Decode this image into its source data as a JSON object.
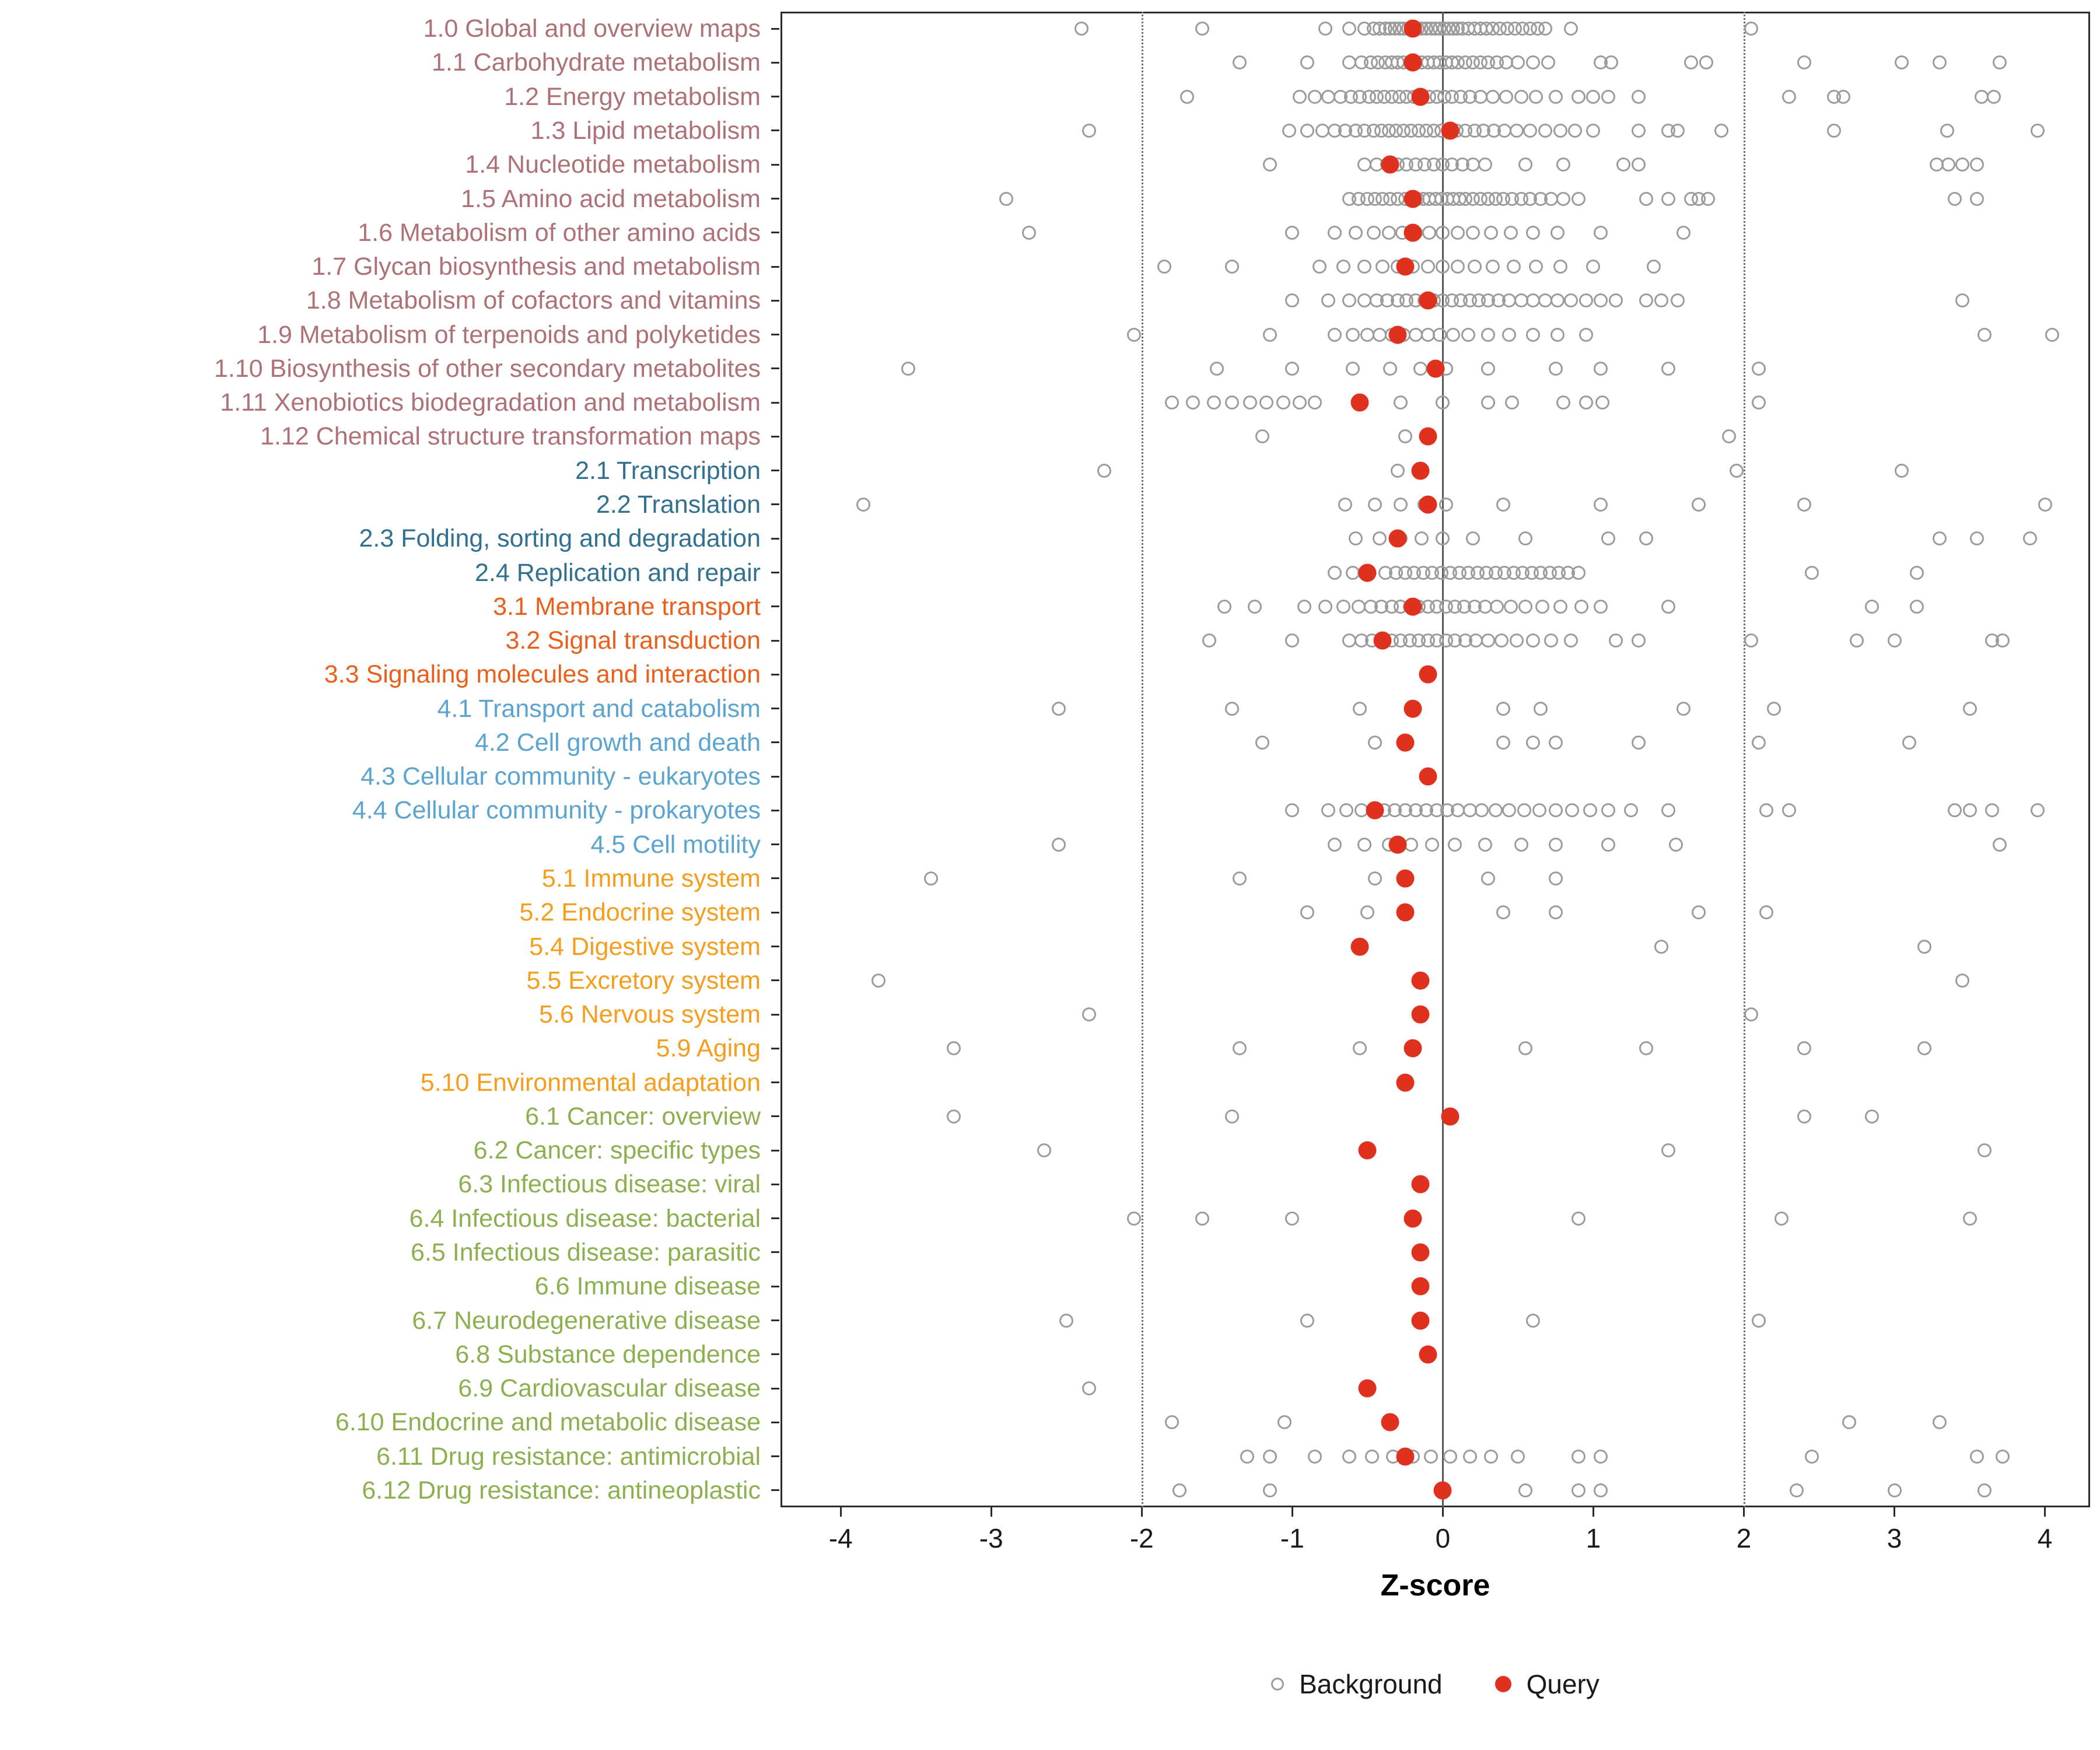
{
  "legend": {
    "background": "Background",
    "query": "Query"
  },
  "colors": {
    "query": "#E0301E",
    "background_stroke": "#9C9C9C",
    "axis": "#2B2B2B",
    "zero_line": "#595959",
    "threshold_line": "#6E6E6E"
  },
  "chart_data": {
    "type": "scatter",
    "title": "",
    "xlabel": "Z-score",
    "ylabel": "",
    "xlim": [
      -4.4,
      4.3
    ],
    "x_ticks": [
      -4,
      -3,
      -2,
      -1,
      0,
      1,
      2,
      3,
      4
    ],
    "reference_lines": {
      "solid_at": [
        0
      ],
      "dotted_at": [
        -2,
        2
      ]
    },
    "legend_position": "bottom",
    "grid": false,
    "series_names": [
      "Background",
      "Query"
    ],
    "groups": {
      "metabolism": "#AE7276",
      "genetic_information_processing": "#31708E",
      "environmental_information_processing": "#E8601C",
      "cellular_processes": "#5BA4CF",
      "organismal_systems": "#F59D1C",
      "human_diseases": "#8CB050"
    },
    "rows": [
      {
        "label": "1.0 Global and overview maps",
        "group": "metabolism",
        "query": -0.2,
        "background": [
          -2.4,
          -1.6,
          -0.78,
          -0.62,
          -0.52,
          -0.46,
          -0.42,
          -0.38,
          -0.35,
          -0.32,
          -0.29,
          -0.26,
          -0.23,
          -0.2,
          -0.17,
          -0.14,
          -0.11,
          -0.08,
          -0.05,
          -0.02,
          0.01,
          0.04,
          0.07,
          0.1,
          0.13,
          0.17,
          0.21,
          0.25,
          0.29,
          0.33,
          0.38,
          0.43,
          0.48,
          0.53,
          0.58,
          0.63,
          0.68,
          0.85,
          2.05
        ]
      },
      {
        "label": "1.1 Carbohydrate metabolism",
        "group": "metabolism",
        "query": -0.2,
        "background": [
          -1.35,
          -0.9,
          -0.62,
          -0.54,
          -0.48,
          -0.43,
          -0.38,
          -0.34,
          -0.3,
          -0.26,
          -0.22,
          -0.18,
          -0.14,
          -0.1,
          -0.06,
          -0.02,
          0.02,
          0.06,
          0.1,
          0.15,
          0.2,
          0.25,
          0.3,
          0.36,
          0.42,
          0.5,
          0.6,
          0.7,
          1.05,
          1.12,
          1.65,
          1.75,
          2.4,
          3.05,
          3.3,
          3.7
        ]
      },
      {
        "label": "1.2 Energy metabolism",
        "group": "metabolism",
        "query": -0.15,
        "background": [
          -1.7,
          -0.95,
          -0.85,
          -0.76,
          -0.68,
          -0.61,
          -0.55,
          -0.49,
          -0.44,
          -0.39,
          -0.34,
          -0.29,
          -0.24,
          -0.19,
          -0.14,
          -0.09,
          -0.04,
          0.01,
          0.06,
          0.12,
          0.18,
          0.25,
          0.33,
          0.42,
          0.52,
          0.62,
          0.75,
          0.9,
          1.0,
          1.1,
          1.3,
          2.3,
          2.6,
          2.66,
          3.58,
          3.66
        ]
      },
      {
        "label": "1.3 Lipid metabolism",
        "group": "metabolism",
        "query": 0.05,
        "background": [
          -2.35,
          -1.02,
          -0.9,
          -0.8,
          -0.72,
          -0.65,
          -0.58,
          -0.52,
          -0.46,
          -0.41,
          -0.36,
          -0.31,
          -0.26,
          -0.21,
          -0.16,
          -0.11,
          -0.06,
          -0.01,
          0.04,
          0.09,
          0.15,
          0.21,
          0.27,
          0.34,
          0.41,
          0.49,
          0.58,
          0.68,
          0.78,
          0.88,
          1.0,
          1.3,
          1.5,
          1.56,
          1.85,
          2.6,
          3.35,
          3.95
        ]
      },
      {
        "label": "1.4 Nucleotide metabolism",
        "group": "metabolism",
        "query": -0.35,
        "background": [
          -1.15,
          -0.52,
          -0.44,
          -0.37,
          -0.3,
          -0.24,
          -0.18,
          -0.12,
          -0.06,
          0.0,
          0.06,
          0.13,
          0.2,
          0.28,
          0.55,
          0.8,
          1.2,
          1.3,
          3.28,
          3.36,
          3.45,
          3.55
        ]
      },
      {
        "label": "1.5 Amino acid metabolism",
        "group": "metabolism",
        "query": -0.2,
        "background": [
          -2.9,
          -0.62,
          -0.56,
          -0.5,
          -0.45,
          -0.4,
          -0.35,
          -0.3,
          -0.25,
          -0.21,
          -0.17,
          -0.13,
          -0.09,
          -0.05,
          -0.01,
          0.03,
          0.07,
          0.11,
          0.15,
          0.2,
          0.25,
          0.3,
          0.35,
          0.4,
          0.46,
          0.52,
          0.58,
          0.65,
          0.72,
          0.8,
          0.9,
          1.35,
          1.5,
          1.65,
          1.7,
          1.76,
          3.4,
          3.55
        ]
      },
      {
        "label": "1.6 Metabolism of other amino acids",
        "group": "metabolism",
        "query": -0.2,
        "background": [
          -2.75,
          -1.0,
          -0.72,
          -0.58,
          -0.46,
          -0.36,
          -0.27,
          -0.18,
          -0.09,
          0.0,
          0.1,
          0.2,
          0.32,
          0.45,
          0.6,
          0.76,
          1.05,
          1.6
        ]
      },
      {
        "label": "1.7 Glycan biosynthesis and metabolism",
        "group": "metabolism",
        "query": -0.25,
        "background": [
          -1.85,
          -1.4,
          -0.82,
          -0.66,
          -0.52,
          -0.4,
          -0.3,
          -0.2,
          -0.1,
          0.0,
          0.1,
          0.21,
          0.33,
          0.47,
          0.62,
          0.78,
          1.0,
          1.4
        ]
      },
      {
        "label": "1.8 Metabolism of cofactors and vitamins",
        "group": "metabolism",
        "query": -0.1,
        "background": [
          -1.0,
          -0.76,
          -0.62,
          -0.52,
          -0.44,
          -0.37,
          -0.3,
          -0.24,
          -0.18,
          -0.12,
          -0.06,
          0.0,
          0.06,
          0.12,
          0.18,
          0.24,
          0.3,
          0.37,
          0.44,
          0.52,
          0.6,
          0.68,
          0.76,
          0.85,
          0.95,
          1.05,
          1.15,
          1.35,
          1.45,
          1.56,
          3.45
        ]
      },
      {
        "label": "1.9 Metabolism of terpenoids and polyketides",
        "group": "metabolism",
        "query": -0.3,
        "background": [
          -2.05,
          -1.15,
          -0.72,
          -0.6,
          -0.5,
          -0.42,
          -0.34,
          -0.26,
          -0.18,
          -0.1,
          -0.02,
          0.07,
          0.17,
          0.3,
          0.44,
          0.6,
          0.76,
          0.95,
          3.6,
          4.05
        ]
      },
      {
        "label": "1.10 Biosynthesis of other secondary metabolites",
        "group": "metabolism",
        "query": -0.05,
        "background": [
          -3.55,
          -1.5,
          -1.0,
          -0.6,
          -0.35,
          -0.15,
          0.02,
          0.3,
          0.75,
          1.05,
          1.5,
          2.1
        ]
      },
      {
        "label": "1.11 Xenobiotics biodegradation and metabolism",
        "group": "metabolism",
        "query": -0.55,
        "background": [
          -1.8,
          -1.66,
          -1.52,
          -1.4,
          -1.28,
          -1.17,
          -1.06,
          -0.95,
          -0.85,
          -0.55,
          -0.28,
          0.0,
          0.3,
          0.46,
          0.8,
          0.95,
          1.06,
          2.1
        ]
      },
      {
        "label": "1.12 Chemical structure transformation maps",
        "group": "metabolism",
        "query": -0.1,
        "background": [
          -1.2,
          -0.25,
          1.9
        ]
      },
      {
        "label": "2.1 Transcription",
        "group": "genetic_information_processing",
        "query": -0.15,
        "background": [
          -2.25,
          -0.3,
          1.95,
          3.05
        ]
      },
      {
        "label": "2.2 Translation",
        "group": "genetic_information_processing",
        "query": -0.1,
        "background": [
          -3.85,
          -0.65,
          -0.45,
          -0.28,
          -0.12,
          0.02,
          0.4,
          1.05,
          1.7,
          2.4,
          4.0
        ]
      },
      {
        "label": "2.3 Folding, sorting and degradation",
        "group": "genetic_information_processing",
        "query": -0.3,
        "background": [
          -0.58,
          -0.42,
          -0.28,
          -0.14,
          0.0,
          0.2,
          0.55,
          1.1,
          1.35,
          3.3,
          3.55,
          3.9
        ]
      },
      {
        "label": "2.4 Replication and repair",
        "group": "genetic_information_processing",
        "query": -0.5,
        "background": [
          -0.72,
          -0.6,
          -0.52,
          -0.38,
          -0.31,
          -0.25,
          -0.19,
          -0.13,
          -0.07,
          -0.01,
          0.05,
          0.11,
          0.17,
          0.23,
          0.29,
          0.35,
          0.41,
          0.47,
          0.53,
          0.59,
          0.65,
          0.71,
          0.77,
          0.83,
          0.9,
          2.45,
          3.15
        ]
      },
      {
        "label": "3.1 Membrane transport",
        "group": "environmental_information_processing",
        "query": -0.2,
        "background": [
          -1.45,
          -1.25,
          -0.92,
          -0.78,
          -0.66,
          -0.56,
          -0.48,
          -0.41,
          -0.34,
          -0.28,
          -0.22,
          -0.16,
          -0.1,
          -0.04,
          0.02,
          0.08,
          0.14,
          0.21,
          0.28,
          0.36,
          0.45,
          0.55,
          0.66,
          0.78,
          0.92,
          1.05,
          1.5,
          2.85,
          3.15
        ]
      },
      {
        "label": "3.2 Signal transduction",
        "group": "environmental_information_processing",
        "query": -0.4,
        "background": [
          -1.55,
          -1.0,
          -0.62,
          -0.54,
          -0.47,
          -0.4,
          -0.34,
          -0.28,
          -0.22,
          -0.16,
          -0.1,
          -0.04,
          0.02,
          0.08,
          0.15,
          0.22,
          0.3,
          0.39,
          0.49,
          0.6,
          0.72,
          0.85,
          1.15,
          1.3,
          2.05,
          2.75,
          3.0,
          3.65,
          3.72
        ]
      },
      {
        "label": "3.3 Signaling molecules and interaction",
        "group": "environmental_information_processing",
        "query": -0.1,
        "background": []
      },
      {
        "label": "4.1 Transport and catabolism",
        "group": "cellular_processes",
        "query": -0.2,
        "background": [
          -2.55,
          -1.4,
          -0.55,
          0.4,
          0.65,
          1.6,
          2.2,
          3.5
        ]
      },
      {
        "label": "4.2 Cell growth and death",
        "group": "cellular_processes",
        "query": -0.25,
        "background": [
          -1.2,
          -0.45,
          0.4,
          0.6,
          0.75,
          1.3,
          2.1,
          3.1
        ]
      },
      {
        "label": "4.3 Cellular community - eukaryotes",
        "group": "cellular_processes",
        "query": -0.1,
        "background": []
      },
      {
        "label": "4.4 Cellular community - prokaryotes",
        "group": "cellular_processes",
        "query": -0.45,
        "background": [
          -1.0,
          -0.76,
          -0.64,
          -0.54,
          -0.46,
          -0.39,
          -0.32,
          -0.25,
          -0.18,
          -0.11,
          -0.04,
          0.03,
          0.1,
          0.18,
          0.26,
          0.35,
          0.44,
          0.54,
          0.64,
          0.75,
          0.86,
          0.98,
          1.1,
          1.25,
          1.5,
          2.15,
          2.3,
          3.4,
          3.5,
          3.65,
          3.95
        ]
      },
      {
        "label": "4.5 Cell motility",
        "group": "cellular_processes",
        "query": -0.3,
        "background": [
          -2.55,
          -0.72,
          -0.52,
          -0.36,
          -0.21,
          -0.07,
          0.08,
          0.28,
          0.52,
          0.75,
          1.1,
          1.55,
          3.7
        ]
      },
      {
        "label": "5.1 Immune system",
        "group": "organismal_systems",
        "query": -0.25,
        "background": [
          -3.4,
          -1.35,
          -0.45,
          0.3,
          0.75
        ]
      },
      {
        "label": "5.2 Endocrine system",
        "group": "organismal_systems",
        "query": -0.25,
        "background": [
          -0.9,
          -0.5,
          0.4,
          0.75,
          1.7,
          2.15
        ]
      },
      {
        "label": "5.4 Digestive system",
        "group": "organismal_systems",
        "query": -0.55,
        "background": [
          1.45,
          3.2
        ]
      },
      {
        "label": "5.5 Excretory system",
        "group": "organismal_systems",
        "query": -0.15,
        "background": [
          -3.75,
          3.45
        ]
      },
      {
        "label": "5.6 Nervous system",
        "group": "organismal_systems",
        "query": -0.15,
        "background": [
          -2.35,
          2.05
        ]
      },
      {
        "label": "5.9 Aging",
        "group": "organismal_systems",
        "query": -0.2,
        "background": [
          -3.25,
          -1.35,
          -0.55,
          0.55,
          1.35,
          2.4,
          3.2
        ]
      },
      {
        "label": "5.10 Environmental adaptation",
        "group": "organismal_systems",
        "query": -0.25,
        "background": []
      },
      {
        "label": "6.1 Cancer: overview",
        "group": "human_diseases",
        "query": 0.05,
        "background": [
          -3.25,
          -1.4,
          2.4,
          2.85
        ]
      },
      {
        "label": "6.2 Cancer: specific types",
        "group": "human_diseases",
        "query": -0.5,
        "background": [
          -2.65,
          1.5,
          3.6
        ]
      },
      {
        "label": "6.3 Infectious disease: viral",
        "group": "human_diseases",
        "query": -0.15,
        "background": []
      },
      {
        "label": "6.4 Infectious disease: bacterial",
        "group": "human_diseases",
        "query": -0.2,
        "background": [
          -2.05,
          -1.6,
          -1.0,
          0.9,
          2.25,
          3.5
        ]
      },
      {
        "label": "6.5 Infectious disease: parasitic",
        "group": "human_diseases",
        "query": -0.15,
        "background": []
      },
      {
        "label": "6.6 Immune disease",
        "group": "human_diseases",
        "query": -0.15,
        "background": []
      },
      {
        "label": "6.7 Neurodegenerative disease",
        "group": "human_diseases",
        "query": -0.15,
        "background": [
          -2.5,
          -0.9,
          0.6,
          2.1
        ]
      },
      {
        "label": "6.8 Substance dependence",
        "group": "human_diseases",
        "query": -0.1,
        "background": []
      },
      {
        "label": "6.9 Cardiovascular disease",
        "group": "human_diseases",
        "query": -0.5,
        "background": [
          -2.35
        ]
      },
      {
        "label": "6.10 Endocrine and metabolic disease",
        "group": "human_diseases",
        "query": -0.35,
        "background": [
          -1.8,
          -1.05,
          2.7,
          3.3
        ]
      },
      {
        "label": "6.11 Drug resistance: antimicrobial",
        "group": "human_diseases",
        "query": -0.25,
        "background": [
          -1.3,
          -1.15,
          -0.85,
          -0.62,
          -0.47,
          -0.33,
          -0.2,
          -0.08,
          0.05,
          0.18,
          0.32,
          0.5,
          0.9,
          1.05,
          2.45,
          3.55,
          3.72
        ]
      },
      {
        "label": "6.12 Drug resistance: antineoplastic",
        "group": "human_diseases",
        "query": 0.0,
        "background": [
          -1.75,
          -1.15,
          0.55,
          0.9,
          1.05,
          2.35,
          3.0,
          3.6
        ]
      }
    ]
  }
}
